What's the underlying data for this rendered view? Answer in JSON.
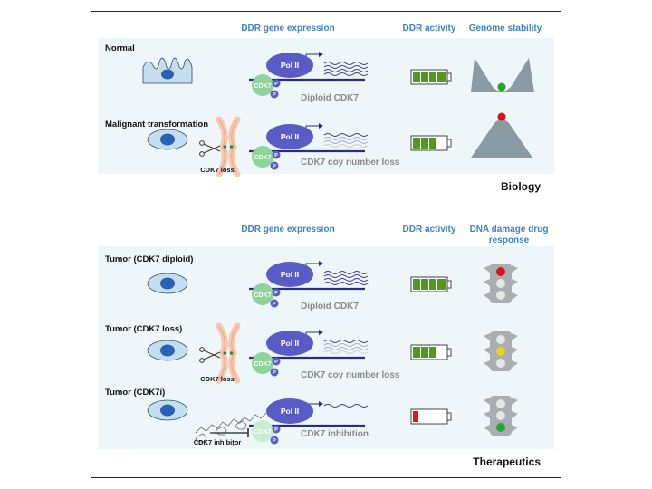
{
  "biology": {
    "headers": {
      "expression": "DDR gene expression",
      "activity": "DDR activity",
      "stability": "Genome stability"
    },
    "rows": [
      {
        "label": "Normal",
        "status": "Diploid CDK7"
      },
      {
        "label": "Malignant transformation",
        "status": "CDK7 coy number loss",
        "note": "CDK7 loss"
      }
    ],
    "section_label": "Biology"
  },
  "therapeutics": {
    "headers": {
      "expression": "DDR gene expression",
      "activity": "DDR activity",
      "response_line1": "DNA damage drug",
      "response_line2": "response"
    },
    "rows": [
      {
        "label": "Tumor (CDK7 diploid)",
        "status": "Diploid CDK7"
      },
      {
        "label": "Tumor (CDK7 loss)",
        "status": "CDK7 coy number loss",
        "note": "CDK7 loss"
      },
      {
        "label": "Tumor (CDK7i)",
        "status": "CDK7 inhibition",
        "note": "CDK7 inhibitor"
      }
    ],
    "section_label": "Therapeutics"
  },
  "complex": {
    "pol_label": "Pol II",
    "cdk_label": "CDK7",
    "phospho_label": "P"
  },
  "colors": {
    "panel": "#eef6fa",
    "heading": "#3c82c4",
    "cell": "#c6ddef",
    "nucleus": "#2a62b8",
    "pol_ii": "#5a5cc6",
    "cdk7": "#8fd39a",
    "dna": "#2b2b80",
    "battery_green": "#4f9a1e",
    "battery_red": "#d41c1c",
    "landscape": "#8a9aa3",
    "ball_green": "#1fa82d",
    "ball_red": "#d4141c",
    "traffic_body": "#a9aeb3"
  }
}
